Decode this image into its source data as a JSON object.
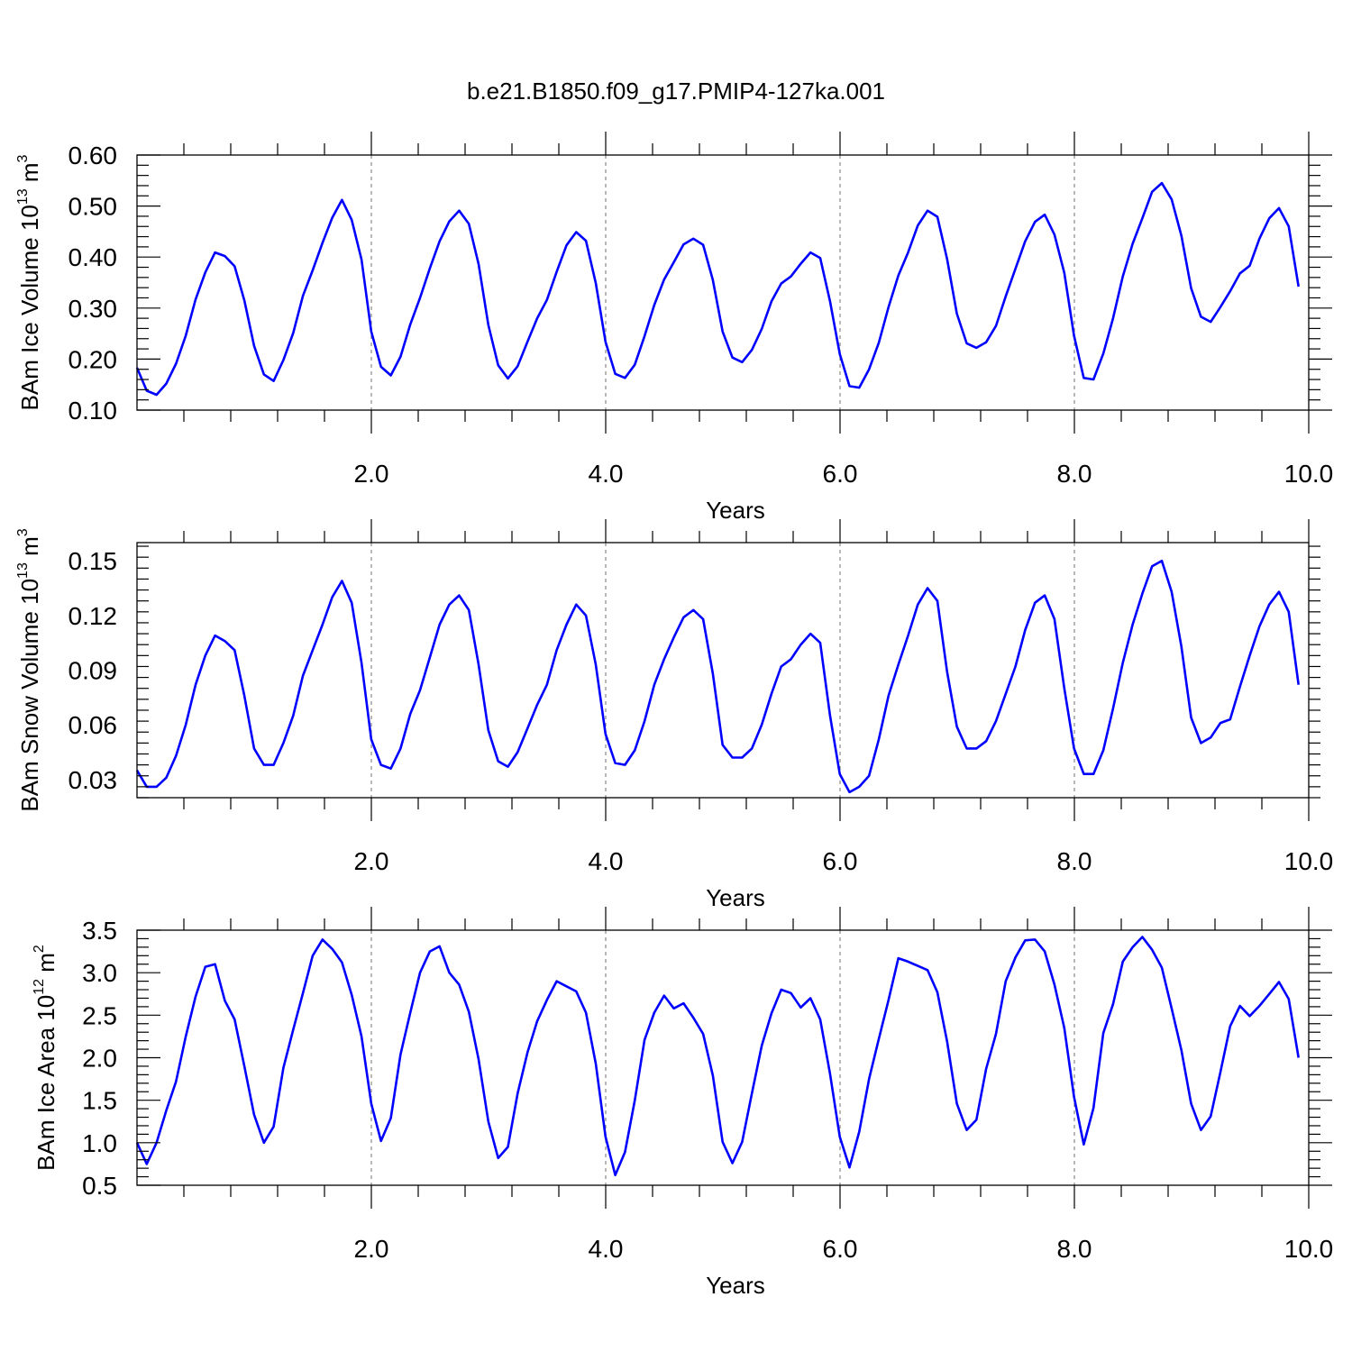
{
  "figure": {
    "title": "b.e21.B1850.f09_g17.PMIP4-127ka.001",
    "line_color": "#0000ff",
    "grid_color": "#888888"
  },
  "chart_data": [
    {
      "type": "line",
      "xlabel": "Years",
      "ylabel": {
        "text": "BAm Ice Volume 10",
        "exp": "13",
        "unit": " m",
        "unit_exp": "3"
      },
      "xlim": [
        0.0,
        10.0
      ],
      "ylim": [
        0.1,
        0.6
      ],
      "x_ticks": [
        "2.0",
        "4.0",
        "6.0",
        "8.0",
        "10.0"
      ],
      "y_ticks": [
        "0.10",
        "0.20",
        "0.30",
        "0.40",
        "0.50",
        "0.60"
      ],
      "x_start": 0.0,
      "x_step": 0.0833,
      "values": [
        0.183,
        0.138,
        0.13,
        0.152,
        0.191,
        0.246,
        0.317,
        0.37,
        0.409,
        0.402,
        0.382,
        0.315,
        0.226,
        0.17,
        0.157,
        0.198,
        0.251,
        0.324,
        0.374,
        0.428,
        0.477,
        0.512,
        0.473,
        0.395,
        0.254,
        0.185,
        0.168,
        0.205,
        0.268,
        0.32,
        0.378,
        0.431,
        0.47,
        0.491,
        0.465,
        0.386,
        0.267,
        0.188,
        0.162,
        0.186,
        0.234,
        0.28,
        0.316,
        0.371,
        0.423,
        0.449,
        0.432,
        0.349,
        0.234,
        0.171,
        0.163,
        0.189,
        0.245,
        0.306,
        0.356,
        0.39,
        0.425,
        0.436,
        0.424,
        0.355,
        0.254,
        0.203,
        0.194,
        0.218,
        0.259,
        0.313,
        0.348,
        0.362,
        0.387,
        0.409,
        0.398,
        0.313,
        0.21,
        0.147,
        0.144,
        0.18,
        0.232,
        0.302,
        0.364,
        0.409,
        0.462,
        0.491,
        0.479,
        0.396,
        0.289,
        0.231,
        0.222,
        0.233,
        0.265,
        0.323,
        0.377,
        0.431,
        0.469,
        0.483,
        0.444,
        0.369,
        0.246,
        0.163,
        0.16,
        0.211,
        0.28,
        0.362,
        0.426,
        0.476,
        0.528,
        0.545,
        0.513,
        0.442,
        0.339,
        0.283,
        0.273,
        0.302,
        0.333,
        0.368,
        0.383,
        0.436,
        0.476,
        0.496,
        0.46,
        0.342
      ]
    },
    {
      "type": "line",
      "xlabel": "Years",
      "ylabel": {
        "text": "BAm Snow Volume 10",
        "exp": "13",
        "unit": " m",
        "unit_exp": "3"
      },
      "xlim": [
        0.0,
        10.0
      ],
      "ylim": [
        0.02,
        0.16
      ],
      "x_ticks": [
        "2.0",
        "4.0",
        "6.0",
        "8.0",
        "10.0"
      ],
      "y_ticks": [
        "0.03",
        "0.06",
        "0.09",
        "0.12",
        "0.15"
      ],
      "x_start": 0.0,
      "x_step": 0.0833,
      "values": [
        0.035,
        0.026,
        0.026,
        0.031,
        0.043,
        0.06,
        0.082,
        0.098,
        0.109,
        0.106,
        0.101,
        0.076,
        0.047,
        0.038,
        0.038,
        0.05,
        0.065,
        0.087,
        0.101,
        0.115,
        0.13,
        0.139,
        0.127,
        0.094,
        0.052,
        0.038,
        0.036,
        0.047,
        0.066,
        0.079,
        0.097,
        0.115,
        0.126,
        0.131,
        0.123,
        0.093,
        0.057,
        0.04,
        0.037,
        0.045,
        0.058,
        0.071,
        0.082,
        0.101,
        0.115,
        0.126,
        0.12,
        0.093,
        0.055,
        0.039,
        0.038,
        0.046,
        0.062,
        0.082,
        0.096,
        0.108,
        0.119,
        0.123,
        0.118,
        0.088,
        0.049,
        0.042,
        0.042,
        0.047,
        0.06,
        0.077,
        0.092,
        0.096,
        0.104,
        0.11,
        0.105,
        0.065,
        0.033,
        0.023,
        0.026,
        0.032,
        0.052,
        0.076,
        0.093,
        0.109,
        0.126,
        0.135,
        0.128,
        0.089,
        0.059,
        0.047,
        0.047,
        0.051,
        0.062,
        0.077,
        0.092,
        0.112,
        0.127,
        0.131,
        0.118,
        0.08,
        0.047,
        0.033,
        0.033,
        0.046,
        0.069,
        0.094,
        0.115,
        0.132,
        0.147,
        0.15,
        0.133,
        0.103,
        0.064,
        0.05,
        0.053,
        0.061,
        0.063,
        0.081,
        0.098,
        0.114,
        0.126,
        0.133,
        0.122,
        0.082
      ]
    },
    {
      "type": "line",
      "xlabel": "Years",
      "ylabel": {
        "text": "BAm Ice Area 10",
        "exp": "12",
        "unit": " m",
        "unit_exp": "2"
      },
      "xlim": [
        0.0,
        10.0
      ],
      "ylim": [
        0.5,
        3.5
      ],
      "x_ticks": [
        "2.0",
        "4.0",
        "6.0",
        "8.0",
        "10.0"
      ],
      "y_ticks": [
        "0.5",
        "1.0",
        "1.5",
        "2.0",
        "2.5",
        "3.0",
        "3.5"
      ],
      "x_start": 0.0,
      "x_step": 0.0833,
      "values": [
        1.0,
        0.75,
        1.0,
        1.38,
        1.72,
        2.25,
        2.72,
        3.07,
        3.1,
        2.67,
        2.45,
        1.9,
        1.33,
        1.0,
        1.19,
        1.88,
        2.33,
        2.76,
        3.2,
        3.39,
        3.28,
        3.12,
        2.74,
        2.25,
        1.46,
        1.02,
        1.29,
        2.04,
        2.53,
        3.0,
        3.25,
        3.31,
        3.0,
        2.86,
        2.54,
        1.98,
        1.25,
        0.82,
        0.95,
        1.58,
        2.06,
        2.43,
        2.68,
        2.9,
        2.84,
        2.78,
        2.53,
        1.93,
        1.07,
        0.62,
        0.89,
        1.5,
        2.21,
        2.53,
        2.73,
        2.58,
        2.64,
        2.47,
        2.28,
        1.79,
        1.01,
        0.76,
        1.01,
        1.58,
        2.14,
        2.52,
        2.8,
        2.76,
        2.59,
        2.7,
        2.45,
        1.81,
        1.07,
        0.71,
        1.13,
        1.75,
        2.22,
        2.68,
        3.17,
        3.13,
        3.08,
        3.03,
        2.77,
        2.19,
        1.46,
        1.15,
        1.27,
        1.87,
        2.28,
        2.9,
        3.18,
        3.38,
        3.39,
        3.25,
        2.86,
        2.35,
        1.54,
        0.98,
        1.41,
        2.29,
        2.63,
        3.13,
        3.3,
        3.42,
        3.27,
        3.06,
        2.58,
        2.09,
        1.46,
        1.15,
        1.31,
        1.83,
        2.37,
        2.61,
        2.49,
        2.61,
        2.75,
        2.89,
        2.69,
        2.0
      ]
    }
  ]
}
